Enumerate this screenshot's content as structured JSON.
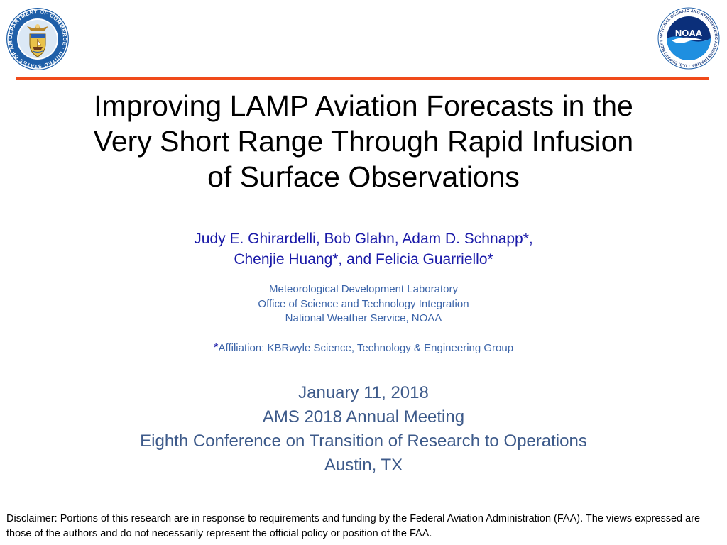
{
  "logos": {
    "left": "department-of-commerce-seal",
    "left_ring_text": "DEPARTMENT OF COMMERCE · UNITED STATES OF AMERICA",
    "right": "noaa-logo",
    "right_center_text": "NOAA",
    "right_ring_text": "NATIONAL OCEANIC AND ATMOSPHERIC ADMINISTRATION · U.S. DEPARTMENT OF COMMERCE"
  },
  "colors": {
    "rule": "#f04a1a",
    "authors": "#1a1aa8",
    "affiliation": "#3a63a8",
    "event": "#3d5a8a"
  },
  "title": {
    "lines": [
      "Improving LAMP Aviation Forecasts in the",
      "Very Short Range Through Rapid Infusion",
      "of Surface Observations"
    ]
  },
  "authors": {
    "lines": [
      "Judy E. Ghirardelli, Bob Glahn, Adam D. Schnapp*,",
      "Chenjie Huang*, and Felicia Guarriello*"
    ]
  },
  "affiliation": {
    "lines": [
      "Meteorological Development Laboratory",
      "Office of Science and Technology Integration",
      "National Weather Service, NOAA"
    ]
  },
  "footnote": {
    "marker": "*",
    "text": "Affiliation: KBRwyle Science, Technology & Engineering Group"
  },
  "event": {
    "lines": [
      "January 11, 2018",
      "AMS 2018 Annual Meeting",
      "Eighth Conference on Transition of Research to Operations",
      "Austin, TX"
    ]
  },
  "disclaimer": "Disclaimer:  Portions of this research are in response to requirements and funding by the Federal Aviation Administration (FAA). The views expressed are those of the authors and do not necessarily represent the official policy or position of the FAA."
}
